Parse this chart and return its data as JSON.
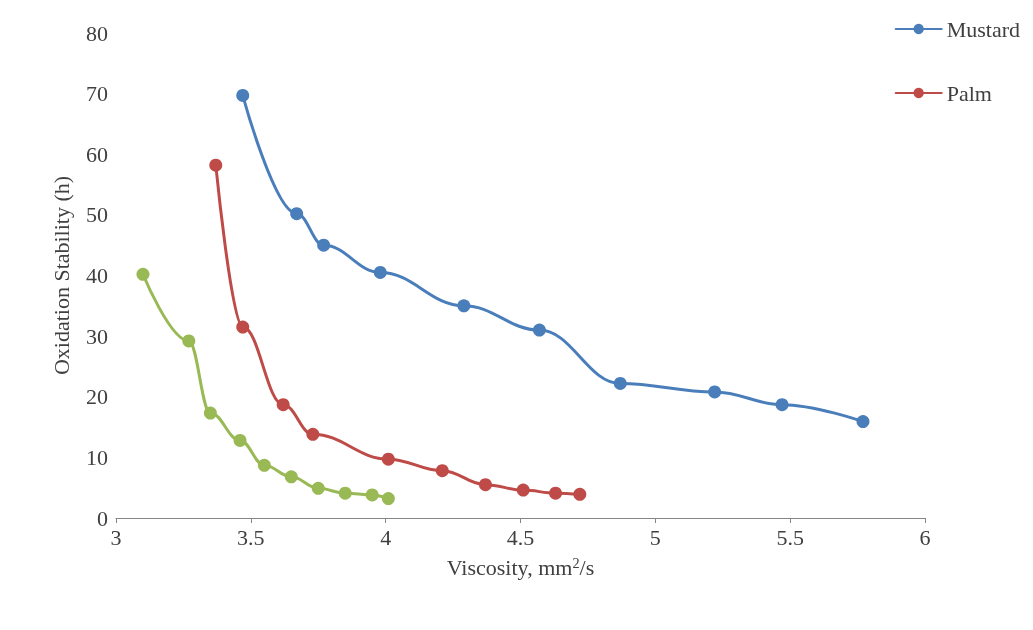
{
  "chart_data": {
    "type": "line",
    "xlabel": "Viscosity, mm$^{2}$/s",
    "ylabel": "Oxidation Stability (h)",
    "xlim": [
      3,
      6
    ],
    "xticks": [
      3,
      3.5,
      4,
      4.5,
      5,
      5.5,
      6
    ],
    "ylim": [
      0,
      80
    ],
    "yticks": [
      0,
      10,
      20,
      30,
      40,
      50,
      60,
      70,
      80
    ],
    "grid": false,
    "legend": "top right",
    "marker": "circle",
    "line_style": "solid",
    "series": [
      {
        "name": "Mustard",
        "color": "#4a7ebb",
        "x": [
          3.47,
          3.67,
          3.77,
          3.98,
          4.29,
          4.57,
          4.87,
          5.22,
          5.47,
          5.77
        ],
        "values": [
          69.7,
          50.2,
          45.0,
          40.5,
          35.0,
          31.0,
          22.2,
          20.8,
          18.7,
          15.9
        ]
      },
      {
        "name": "Palm",
        "color": "#be4b48",
        "x": [
          3.37,
          3.47,
          3.62,
          3.73,
          4.01,
          4.21,
          4.37,
          4.51,
          4.63,
          4.72
        ],
        "values": [
          58.2,
          31.5,
          18.7,
          13.8,
          9.7,
          7.8,
          5.5,
          4.6,
          4.1,
          3.9
        ]
      },
      {
        "color": "#98b954",
        "x": [
          3.1,
          3.27,
          3.35,
          3.46,
          3.55,
          3.65,
          3.75,
          3.85,
          3.95,
          4.01
        ],
        "values": [
          40.2,
          29.2,
          17.3,
          12.8,
          8.7,
          6.8,
          4.9,
          4.1,
          3.8,
          3.2
        ]
      }
    ]
  }
}
